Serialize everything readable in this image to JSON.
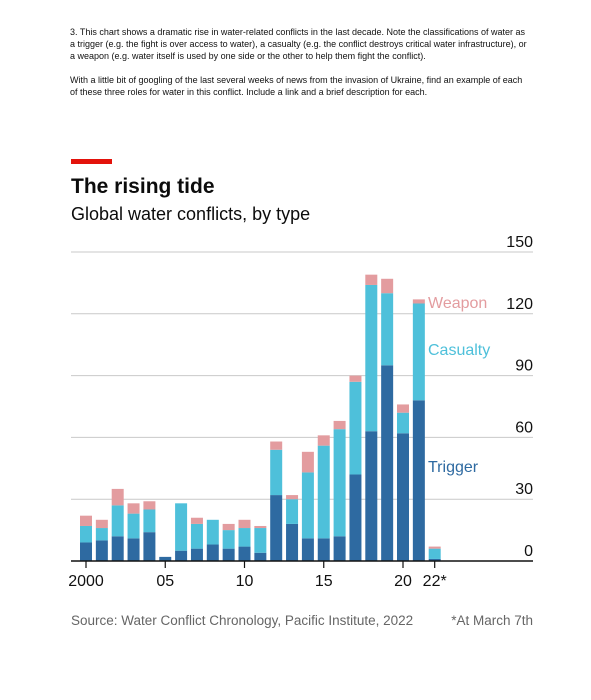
{
  "instructions": {
    "paragraph1": "3. This chart shows a dramatic rise in water-related conflicts in the last decade. Note the classifications of water as a trigger (e.g. the fight is over access to water), a casualty (e.g. the conflict destroys critical water infrastructure), or a weapon (e.g. water itself is used by one side or the other to help them fight the conflict).",
    "paragraph2": "With a little bit of googling of the last several weeks of news from the invasion of Ukraine, find an example of each of these three roles for water in this conflict. Include a link and a brief description for each."
  },
  "header": {
    "title": "The rising tide",
    "subtitle": "Global water conflicts, by type"
  },
  "footer": {
    "source": "Source: Water Conflict Chronology, Pacific Institute, 2022",
    "footnote": "*At March 7th"
  },
  "colors": {
    "trigger": "#2e6aa1",
    "casualty": "#4ec0da",
    "weapon": "#e39c9f",
    "accent": "#e3120b",
    "gridline": "#c9c9c9",
    "axis": "#111111"
  },
  "chart_data": {
    "type": "bar",
    "stacked": true,
    "title": "The rising tide",
    "subtitle": "Global water conflicts, by type",
    "categories": [
      "2000",
      "2001",
      "2002",
      "2003",
      "2004",
      "2005",
      "2006",
      "2007",
      "2008",
      "2009",
      "2010",
      "2011",
      "2012",
      "2013",
      "2014",
      "2015",
      "2016",
      "2017",
      "2018",
      "2019",
      "2020",
      "2021",
      "2022*"
    ],
    "x_tick_labels": [
      {
        "category": "2000",
        "label": "2000"
      },
      {
        "category": "2005",
        "label": "05"
      },
      {
        "category": "2010",
        "label": "10"
      },
      {
        "category": "2015",
        "label": "15"
      },
      {
        "category": "2020",
        "label": "20"
      },
      {
        "category": "2022*",
        "label": "22*"
      }
    ],
    "series": [
      {
        "name": "Trigger",
        "color": "#2e6aa1",
        "values": [
          9,
          10,
          12,
          11,
          14,
          2,
          5,
          6,
          8,
          6,
          7,
          4,
          32,
          18,
          11,
          11,
          12,
          42,
          63,
          95,
          62,
          78,
          1
        ]
      },
      {
        "name": "Casualty",
        "color": "#4ec0da",
        "values": [
          8,
          6,
          15,
          12,
          11,
          0,
          23,
          12,
          12,
          9,
          9,
          12,
          22,
          12,
          32,
          45,
          52,
          45,
          71,
          35,
          10,
          47,
          5
        ]
      },
      {
        "name": "Weapon",
        "color": "#e39c9f",
        "values": [
          5,
          4,
          8,
          5,
          4,
          0,
          0,
          3,
          0,
          3,
          4,
          1,
          4,
          2,
          10,
          5,
          4,
          3,
          5,
          7,
          4,
          2,
          1
        ]
      }
    ],
    "ylim": [
      0,
      150
    ],
    "yticks": [
      0,
      30,
      60,
      90,
      120,
      150
    ],
    "y_axis_side": "right",
    "grid": true,
    "legend": "inline-right"
  }
}
